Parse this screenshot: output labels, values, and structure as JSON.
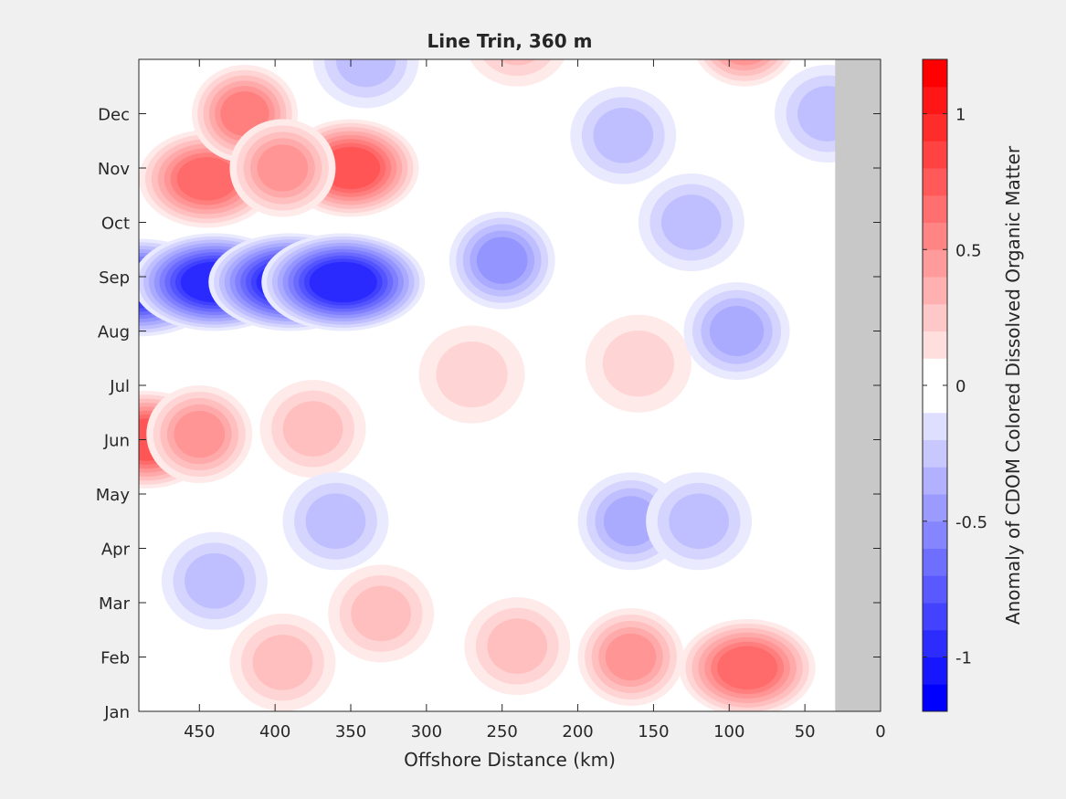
{
  "chart_data": {
    "type": "heatmap",
    "title": "Line Trin, 360 m",
    "xlabel": "Offshore Distance (km)",
    "ylabel": "",
    "xlim": [
      490,
      0
    ],
    "x_reversed": true,
    "x_ticks": [
      450,
      400,
      350,
      300,
      250,
      200,
      150,
      100,
      50,
      0
    ],
    "y_ticks": [
      "Jan",
      "Feb",
      "Mar",
      "Apr",
      "May",
      "Jun",
      "Jul",
      "Aug",
      "Sep",
      "Oct",
      "Nov",
      "Dec"
    ],
    "no_data_region_km": [
      30,
      0
    ],
    "colorbar": {
      "label": "Anomaly of CDOM Colored Dissolved Organic Matter",
      "range": [
        -1.2,
        1.2
      ],
      "step": 0.1,
      "ticks": [
        -1,
        -0.5,
        0,
        0.5,
        1
      ],
      "tick_labels": [
        "-1",
        "-0.5",
        "0",
        "0.5",
        "1"
      ],
      "colormap": "blue-white-red",
      "negative_color": "#0000ff",
      "positive_color": "#ff0000",
      "zero_color": "#ffffff"
    },
    "no_data_color": "#c8c8c8",
    "anomaly_features": [
      {
        "x": 485,
        "month": 5.0,
        "value": 0.8
      },
      {
        "x": 450,
        "month": 5.1,
        "value": 0.5
      },
      {
        "x": 375,
        "month": 5.2,
        "value": 0.3
      },
      {
        "x": 270,
        "month": 6.2,
        "value": 0.2
      },
      {
        "x": 160,
        "month": 6.4,
        "value": 0.2
      },
      {
        "x": 490,
        "month": 7.8,
        "value": -0.9
      },
      {
        "x": 440,
        "month": 7.9,
        "value": -1.0
      },
      {
        "x": 390,
        "month": 7.9,
        "value": -1.0
      },
      {
        "x": 355,
        "month": 7.9,
        "value": -1.0
      },
      {
        "x": 250,
        "month": 8.3,
        "value": -0.45
      },
      {
        "x": 95,
        "month": 7.0,
        "value": -0.4
      },
      {
        "x": 445,
        "month": 9.8,
        "value": 0.7
      },
      {
        "x": 420,
        "month": 11.0,
        "value": 0.6
      },
      {
        "x": 350,
        "month": 10.0,
        "value": 0.8
      },
      {
        "x": 395,
        "month": 10.0,
        "value": 0.5
      },
      {
        "x": 340,
        "month": 12.0,
        "value": -0.35
      },
      {
        "x": 170,
        "month": 10.6,
        "value": -0.3
      },
      {
        "x": 125,
        "month": 9.0,
        "value": -0.3
      },
      {
        "x": 35,
        "month": 11.0,
        "value": -0.35
      },
      {
        "x": 240,
        "month": 12.4,
        "value": 0.3
      },
      {
        "x": 90,
        "month": 12.4,
        "value": 0.55
      },
      {
        "x": 165,
        "month": 3.5,
        "value": -0.4
      },
      {
        "x": 120,
        "month": 3.5,
        "value": -0.35
      },
      {
        "x": 360,
        "month": 3.5,
        "value": -0.3
      },
      {
        "x": 440,
        "month": 2.4,
        "value": -0.35
      },
      {
        "x": 330,
        "month": 1.8,
        "value": 0.3
      },
      {
        "x": 240,
        "month": 1.2,
        "value": 0.35
      },
      {
        "x": 165,
        "month": 1.0,
        "value": 0.5
      },
      {
        "x": 88,
        "month": 0.8,
        "value": 0.7
      },
      {
        "x": 395,
        "month": 0.9,
        "value": 0.35
      }
    ]
  }
}
